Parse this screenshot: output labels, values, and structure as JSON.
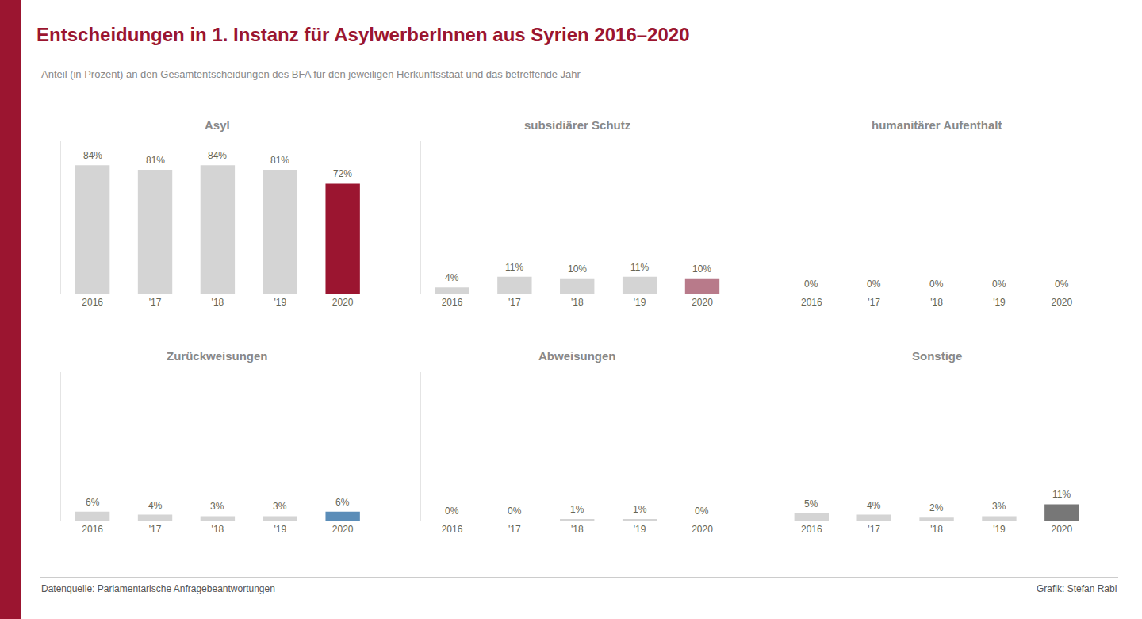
{
  "title": "Entscheidungen in 1. Instanz für AsylwerberInnen aus Syrien 2016–2020",
  "subtitle": "Anteil (in Prozent) an den Gesamtentscheidungen des BFA für den jeweiligen Herkunftsstaat und das betreffende Jahr",
  "annotations": [
    "Datenquelle: Parlamentarische Anfragebeantwortungen",
    "Grafik: Stefan Rabl"
  ],
  "chart_data": [
    {
      "type": "bar",
      "title": "Asyl",
      "categories": [
        "2016",
        "'17",
        "'18",
        "'19",
        "2020"
      ],
      "values": [
        84,
        81,
        84,
        81,
        72
      ],
      "value_labels": [
        "84%",
        "81%",
        "84%",
        "81%",
        "72%"
      ],
      "colors": [
        "#d4d4d4",
        "#d4d4d4",
        "#d4d4d4",
        "#d4d4d4",
        "#9B1530"
      ],
      "ylim": [
        0,
        100
      ],
      "data_labels": true,
      "tick_labels": "x",
      "grid": false
    },
    {
      "type": "bar",
      "title": "subsidiärer Schutz",
      "categories": [
        "2016",
        "'17",
        "'18",
        "'19",
        "2020"
      ],
      "values": [
        4,
        11,
        10,
        11,
        10
      ],
      "value_labels": [
        "4%",
        "11%",
        "10%",
        "11%",
        "10%"
      ],
      "colors": [
        "#d4d4d4",
        "#d4d4d4",
        "#d4d4d4",
        "#d4d4d4",
        "#b87a8a"
      ],
      "ylim": [
        0,
        100
      ],
      "data_labels": true,
      "tick_labels": "x",
      "grid": false
    },
    {
      "type": "bar",
      "title": "humanitärer Aufenthalt",
      "categories": [
        "2016",
        "'17",
        "'18",
        "'19",
        "2020"
      ],
      "values": [
        0,
        0,
        0,
        0,
        0
      ],
      "value_labels": [
        "0%",
        "0%",
        "0%",
        "0%",
        "0%"
      ],
      "colors": [
        "#d4d4d4",
        "#d4d4d4",
        "#d4d4d4",
        "#d4d4d4",
        "#d4d4d4"
      ],
      "ylim": [
        0,
        100
      ],
      "data_labels": true,
      "tick_labels": "x",
      "grid": false
    },
    {
      "type": "bar",
      "title": "Zurückweisungen",
      "categories": [
        "2016",
        "'17",
        "'18",
        "'19",
        "2020"
      ],
      "values": [
        6,
        4,
        3,
        3,
        6
      ],
      "value_labels": [
        "6%",
        "4%",
        "3%",
        "3%",
        "6%"
      ],
      "colors": [
        "#d4d4d4",
        "#d4d4d4",
        "#d4d4d4",
        "#d4d4d4",
        "#5b8db8"
      ],
      "ylim": [
        0,
        100
      ],
      "data_labels": true,
      "tick_labels": "x",
      "grid": false
    },
    {
      "type": "bar",
      "title": "Abweisungen",
      "categories": [
        "2016",
        "'17",
        "'18",
        "'19",
        "2020"
      ],
      "values": [
        0,
        0,
        1,
        1,
        0
      ],
      "value_labels": [
        "0%",
        "0%",
        "1%",
        "1%",
        "0%"
      ],
      "colors": [
        "#d4d4d4",
        "#d4d4d4",
        "#d4d4d4",
        "#d4d4d4",
        "#d4d4d4"
      ],
      "ylim": [
        0,
        100
      ],
      "data_labels": true,
      "tick_labels": "x",
      "grid": false
    },
    {
      "type": "bar",
      "title": "Sonstige",
      "categories": [
        "2016",
        "'17",
        "'18",
        "'19",
        "2020"
      ],
      "values": [
        5,
        4,
        2,
        3,
        11
      ],
      "value_labels": [
        "5%",
        "4%",
        "2%",
        "3%",
        "11%"
      ],
      "colors": [
        "#d4d4d4",
        "#d4d4d4",
        "#d4d4d4",
        "#d4d4d4",
        "#777777"
      ],
      "ylim": [
        0,
        100
      ],
      "data_labels": true,
      "tick_labels": "x",
      "grid": false
    }
  ]
}
